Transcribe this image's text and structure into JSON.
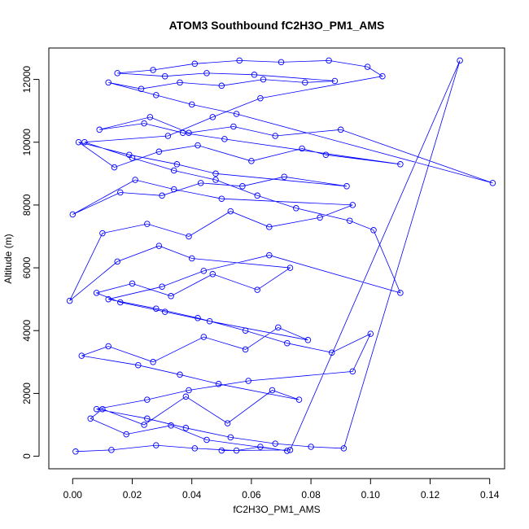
{
  "chart_data": {
    "type": "scatter",
    "title": "ATOM3 Southbound fC2H3O_PM1_AMS",
    "xlabel": "fC2H3O_PM1_AMS",
    "ylabel": "Altitude (m)",
    "xlim": [
      -0.008,
      0.145
    ],
    "ylim": [
      -400,
      13000
    ],
    "xticks": [
      0.0,
      0.02,
      0.04,
      0.06,
      0.08,
      0.1,
      0.12,
      0.14
    ],
    "xtick_labels": [
      "0.00",
      "0.02",
      "0.04",
      "0.06",
      "0.08",
      "0.10",
      "0.12",
      "0.14"
    ],
    "yticks": [
      0,
      2000,
      4000,
      6000,
      8000,
      10000,
      12000
    ],
    "ytick_labels": [
      "0",
      "2000",
      "4000",
      "6000",
      "8000",
      "10000",
      "12000"
    ],
    "grid": false,
    "legend": "none",
    "marker": "open-circle",
    "connected": true,
    "colors": {
      "series": "#0000ff",
      "axes": "#000000",
      "background": "#ffffff"
    },
    "series": [
      {
        "x": [
          0.001,
          0.013,
          0.028,
          0.041,
          0.055,
          0.063,
          0.072,
          0.045,
          0.033,
          0.018,
          0.006,
          0.01,
          0.024,
          0.038,
          0.052,
          0.067,
          0.076,
          0.049,
          0.036,
          0.022,
          0.003,
          0.012,
          0.027,
          0.044,
          0.058,
          0.069,
          0.079,
          0.046,
          0.031,
          0.016,
          0.008,
          0.02,
          0.033,
          0.047,
          0.062,
          0.073,
          0.04,
          0.029,
          0.015,
          -0.001,
          0.01,
          0.025,
          0.039,
          0.053,
          0.066,
          0.083,
          0.094,
          0.05,
          0.034,
          0.021,
          0.0,
          0.016,
          0.03,
          0.043,
          0.057,
          0.071,
          0.092,
          0.048,
          0.035,
          0.019,
          0.002,
          0.014,
          0.029,
          0.042,
          0.06,
          0.077,
          0.085,
          0.11,
          0.051,
          0.037,
          0.024,
          0.009,
          0.026,
          0.039,
          0.054,
          0.068,
          0.09,
          0.141,
          0.055,
          0.04,
          0.028,
          0.012,
          0.023,
          0.036,
          0.05,
          0.064,
          0.078,
          0.088,
          0.061,
          0.045,
          0.031,
          0.015,
          0.027,
          0.041,
          0.056,
          0.07,
          0.086,
          0.099,
          0.104,
          0.063,
          0.047,
          0.032,
          0.004,
          0.02,
          0.034,
          0.048,
          0.062,
          0.075,
          0.093,
          0.101,
          0.11,
          0.066,
          0.044,
          0.03,
          0.012,
          0.028,
          0.042,
          0.058,
          0.072,
          0.087,
          0.1,
          0.094,
          0.059,
          0.039,
          0.025,
          0.008,
          0.025,
          0.038,
          0.053,
          0.068,
          0.08,
          0.091,
          0.13,
          0.073,
          0.05
        ],
        "y": [
          150,
          200,
          350,
          250,
          180,
          300,
          170,
          520,
          980,
          700,
          1200,
          1500,
          1000,
          1900,
          1050,
          2100,
          1800,
          2300,
          2600,
          2900,
          3200,
          3500,
          3000,
          3800,
          3400,
          4100,
          3700,
          4300,
          4600,
          4900,
          5200,
          5500,
          5100,
          5800,
          5300,
          6000,
          6300,
          6700,
          6200,
          4950,
          7100,
          7400,
          7000,
          7800,
          7300,
          7600,
          8000,
          8200,
          8500,
          8800,
          7700,
          8400,
          8300,
          8700,
          8600,
          8900,
          8600,
          9000,
          9300,
          9600,
          10000,
          9200,
          9700,
          9900,
          9400,
          9800,
          9600,
          9300,
          10100,
          10300,
          10600,
          10400,
          10800,
          10300,
          10500,
          10200,
          10400,
          8700,
          10900,
          11200,
          11500,
          11900,
          11700,
          11900,
          11800,
          12000,
          11900,
          11950,
          12150,
          12200,
          12100,
          12200,
          12300,
          12500,
          12600,
          12550,
          12600,
          12400,
          12100,
          11400,
          10800,
          10200,
          10000,
          9500,
          9100,
          8800,
          8300,
          7900,
          7500,
          7200,
          5200,
          6400,
          5900,
          5400,
          5000,
          4700,
          4400,
          4000,
          3600,
          3300,
          3900,
          2700,
          2400,
          2100,
          1800,
          1500,
          1200,
          900,
          600,
          400,
          300,
          250,
          12600,
          200,
          180
        ]
      }
    ]
  }
}
